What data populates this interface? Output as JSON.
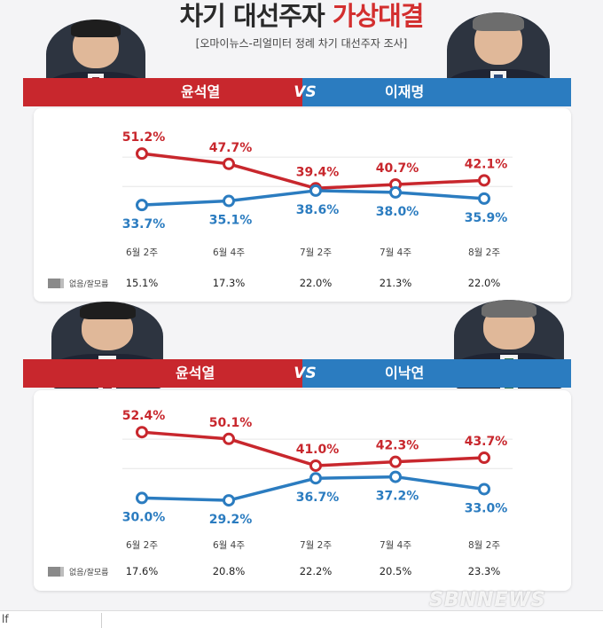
{
  "header": {
    "title_main": "차기 대선주자 ",
    "title_accent": "가상대결",
    "subtitle": "[오마이뉴스-리얼미터 정례 차기 대선주자 조사]"
  },
  "colors": {
    "red": "#c8272d",
    "blue": "#2b7cc0",
    "gray_text": "#444444"
  },
  "chart_data": [
    {
      "type": "line",
      "banner": {
        "left_name": "윤석열",
        "vs": "VS",
        "right_name": "이재명"
      },
      "categories": [
        "6월 2주",
        "6월 4주",
        "7월 2주",
        "7월 4주",
        "8월 2주"
      ],
      "series": [
        {
          "name": "윤석열",
          "color": "#c8272d",
          "values": [
            51.2,
            47.7,
            39.4,
            40.7,
            42.1
          ],
          "labels": [
            "51.2%",
            "47.7%",
            "39.4%",
            "40.7%",
            "42.1%"
          ]
        },
        {
          "name": "이재명",
          "color": "#2b7cc0",
          "values": [
            33.7,
            35.1,
            38.6,
            38.0,
            35.9
          ],
          "labels": [
            "33.7%",
            "35.1%",
            "38.6%",
            "38.0%",
            "35.9%"
          ]
        }
      ],
      "ylim": [
        25,
        60
      ],
      "grid": true,
      "undecided_label": "없음/잘모름",
      "undecided": [
        "15.1%",
        "17.3%",
        "22.0%",
        "21.3%",
        "22.0%"
      ]
    },
    {
      "type": "line",
      "banner": {
        "left_name": "윤석열",
        "vs": "VS",
        "right_name": "이낙연"
      },
      "categories": [
        "6월 2주",
        "6월 4주",
        "7월 2주",
        "7월 4주",
        "8월 2주"
      ],
      "series": [
        {
          "name": "윤석열",
          "color": "#c8272d",
          "values": [
            52.4,
            50.1,
            41.0,
            42.3,
            43.7
          ],
          "labels": [
            "52.4%",
            "50.1%",
            "41.0%",
            "42.3%",
            "43.7%"
          ]
        },
        {
          "name": "이낙연",
          "color": "#2b7cc0",
          "values": [
            30.0,
            29.2,
            36.7,
            37.2,
            33.0
          ],
          "labels": [
            "30.0%",
            "29.2%",
            "36.7%",
            "37.2%",
            "33.0%"
          ]
        }
      ],
      "ylim": [
        25,
        60
      ],
      "grid": true,
      "undecided_label": "없음/잘모름",
      "undecided": [
        "17.6%",
        "20.8%",
        "22.2%",
        "20.5%",
        "23.3%"
      ]
    }
  ],
  "watermark": "SBNNEWS",
  "footer_fragment": "lf"
}
